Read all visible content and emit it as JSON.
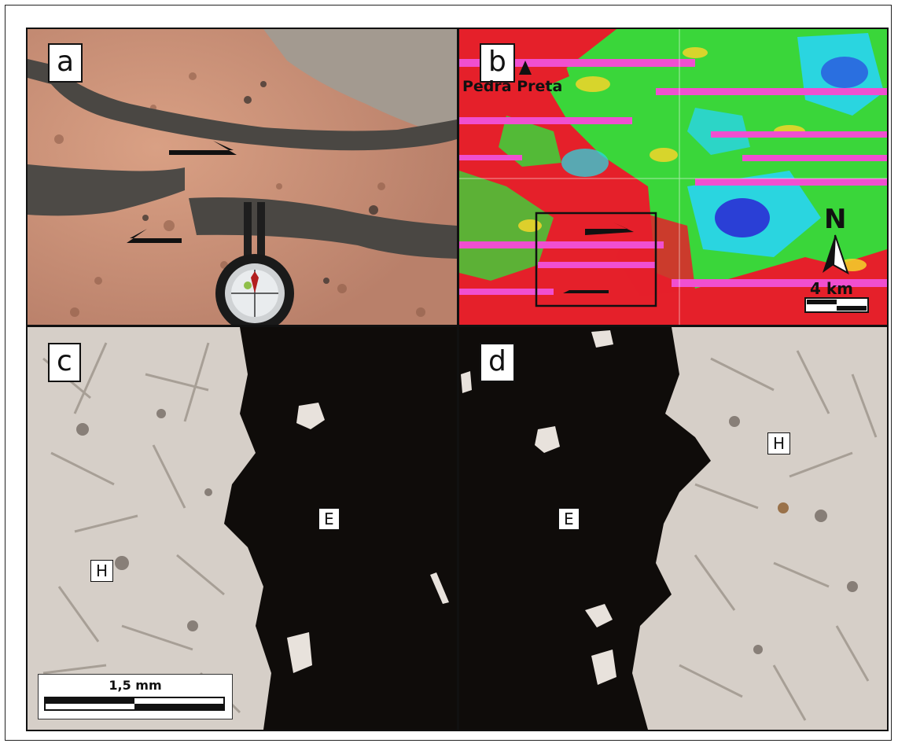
{
  "panels": {
    "a": {
      "letter": "a"
    },
    "b": {
      "letter": "b",
      "place_label": "Pedra Preta",
      "north_label": "N",
      "scale_label": "4 km"
    },
    "c": {
      "letter": "c",
      "host_label": "H",
      "dike_label": "E",
      "scale_label": "1,5 mm"
    },
    "d": {
      "letter": "d",
      "host_label": "H",
      "dike_label": "E"
    }
  },
  "colors": {
    "granite": "#c98f72",
    "dike": "#4a4743",
    "sand": "#a39a90",
    "map_red": "#e5202a",
    "map_green": "#3ad63a",
    "map_magenta": "#f04fd0",
    "map_cyan": "#2ad5e0",
    "map_blue": "#2a3fd6",
    "thin_section_glass": "#0f0c0a",
    "thin_section_host": "#d6cfc8"
  },
  "icons": [
    "shear-arrow-icon",
    "compass-icon",
    "north-arrow-icon",
    "triangle-marker-icon"
  ]
}
